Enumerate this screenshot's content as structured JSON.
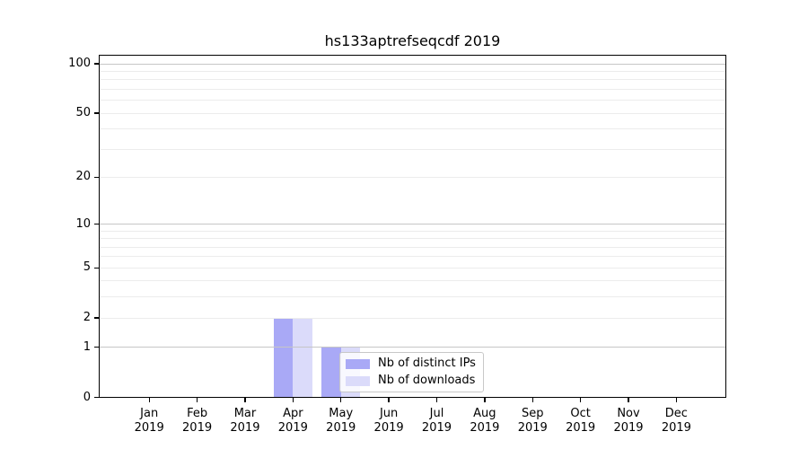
{
  "chart_data": {
    "type": "bar",
    "title": "hs133aptrefseqcdf 2019",
    "categories": [
      "Jan",
      "Feb",
      "Mar",
      "Apr",
      "May",
      "Jun",
      "Jul",
      "Aug",
      "Sep",
      "Oct",
      "Nov",
      "Dec"
    ],
    "year_label": "2019",
    "series": [
      {
        "name": "Nb of distinct IPs",
        "color": "#a9a9f6",
        "values": [
          0,
          0,
          0,
          2,
          1,
          0,
          0,
          0,
          0,
          0,
          0,
          0
        ]
      },
      {
        "name": "Nb of downloads",
        "color": "#dbdbfa",
        "values": [
          0,
          0,
          0,
          2,
          1,
          0,
          0,
          0,
          0,
          0,
          0,
          0
        ]
      }
    ],
    "y_scale": "log1p",
    "ylim": [
      0,
      113
    ],
    "y_ticks": [
      0,
      1,
      2,
      5,
      10,
      20,
      50,
      100
    ],
    "grid": {
      "major_values": [
        1,
        10,
        100
      ],
      "minor_values": [
        2,
        3,
        4,
        5,
        6,
        7,
        8,
        9,
        20,
        30,
        40,
        50,
        60,
        70,
        80,
        90
      ],
      "major_color": "#c6c6c6",
      "minor_color": "#ececec"
    },
    "legend": {
      "entries": [
        "Nb of distinct IPs",
        "Nb of downloads"
      ],
      "position": "lower left of plot, over May bars"
    },
    "xlabel": "",
    "ylabel": ""
  }
}
